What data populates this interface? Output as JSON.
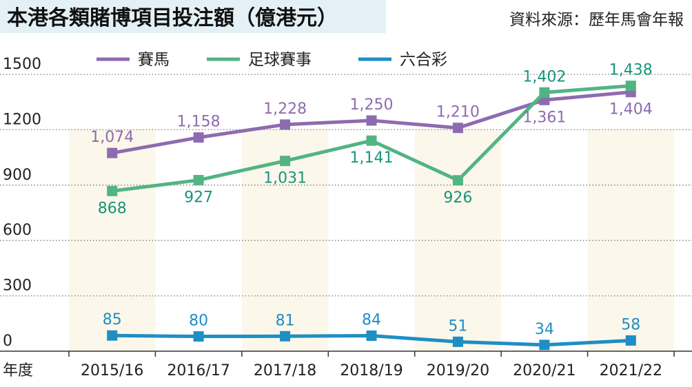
{
  "header": {
    "title": "本港各類賭博項目投注額（億港元）",
    "source": "資料來源：歷年馬會年報"
  },
  "chart_data": {
    "type": "line",
    "title": "本港各類賭博項目投注額（億港元）",
    "xlabel": "年度",
    "ylabel": "",
    "categories": [
      "2015/16",
      "2016/17",
      "2017/18",
      "2018/19",
      "2019/20",
      "2020/21",
      "2021/22"
    ],
    "ylim": [
      0,
      1500
    ],
    "yticks": [
      0,
      300,
      600,
      900,
      1200,
      1500
    ],
    "ytick_labels": [
      "0",
      "300",
      "600",
      "900",
      "1200",
      "1500"
    ],
    "grid": "horizontal-dotted",
    "legend_position": "top",
    "series": [
      {
        "name": "賽馬",
        "color": "#8e6bb0",
        "label_color": "#8e6bb0",
        "values": [
          1074,
          1158,
          1228,
          1250,
          1210,
          1361,
          1404
        ],
        "labels": [
          "1,074",
          "1,158",
          "1,228",
          "1,250",
          "1,210",
          "1,361",
          "1,404"
        ],
        "label_pos": [
          "above",
          "above",
          "above",
          "above",
          "above",
          "below",
          "below"
        ]
      },
      {
        "name": "足球賽事",
        "color": "#52b483",
        "label_color": "#16957e",
        "values": [
          868,
          927,
          1031,
          1141,
          926,
          1402,
          1438
        ],
        "labels": [
          "868",
          "927",
          "1,031",
          "1,141",
          "926",
          "1,402",
          "1,438"
        ],
        "label_pos": [
          "below",
          "below",
          "below",
          "below",
          "below",
          "above",
          "above"
        ]
      },
      {
        "name": "六合彩",
        "color": "#1f8ec4",
        "label_color": "#1f8ec4",
        "values": [
          85,
          80,
          81,
          84,
          51,
          34,
          58
        ],
        "labels": [
          "85",
          "80",
          "81",
          "84",
          "51",
          "34",
          "58"
        ],
        "label_pos": [
          "above",
          "above",
          "above",
          "above",
          "above",
          "above",
          "above"
        ]
      }
    ]
  }
}
